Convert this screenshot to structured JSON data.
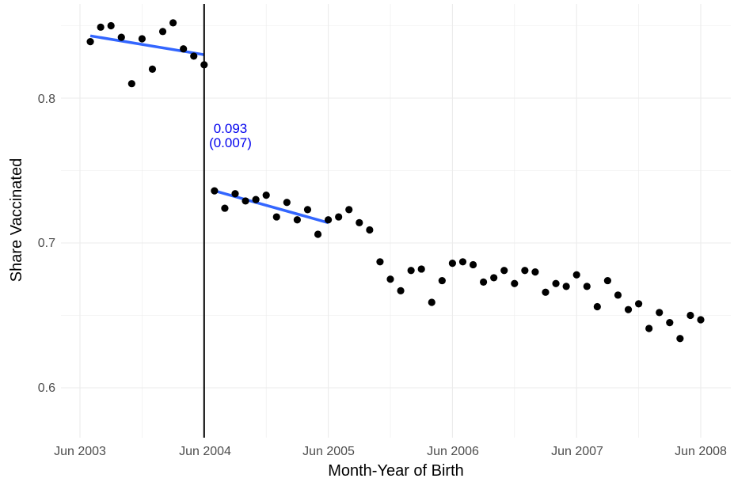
{
  "chart_data": {
    "type": "scatter",
    "title": "",
    "xlabel": "Month-Year of Birth",
    "ylabel": "Share Vaccinated",
    "x_ticks": [
      "Jun 2003",
      "Jun 2004",
      "Jun 2005",
      "Jun 2006",
      "Jun 2007",
      "Jun 2008"
    ],
    "y_ticks": [
      "0.6",
      "0.7",
      "0.8"
    ],
    "ylim": [
      0.565,
      0.868
    ],
    "xlim_months_from_jun_2003": [
      -0.7,
      60.5
    ],
    "grid": true,
    "cutoff": "Jun 2004",
    "annotation": {
      "estimate": "0.093",
      "se": "(0.007)"
    },
    "colors": {
      "points": "#000000",
      "fit": "#3366ff",
      "cutoff": "#000000",
      "annotation": "#0000ee",
      "grid": "#ebebeb"
    },
    "points": [
      {
        "x": "2003-07",
        "y": 0.839
      },
      {
        "x": "2003-08",
        "y": 0.849
      },
      {
        "x": "2003-09",
        "y": 0.85
      },
      {
        "x": "2003-10",
        "y": 0.842
      },
      {
        "x": "2003-11",
        "y": 0.81
      },
      {
        "x": "2003-12",
        "y": 0.841
      },
      {
        "x": "2004-01",
        "y": 0.82
      },
      {
        "x": "2004-02",
        "y": 0.846
      },
      {
        "x": "2004-03",
        "y": 0.852
      },
      {
        "x": "2004-04",
        "y": 0.834
      },
      {
        "x": "2004-05",
        "y": 0.829
      },
      {
        "x": "2004-06",
        "y": 0.823
      },
      {
        "x": "2004-07",
        "y": 0.736
      },
      {
        "x": "2004-08",
        "y": 0.724
      },
      {
        "x": "2004-09",
        "y": 0.734
      },
      {
        "x": "2004-10",
        "y": 0.729
      },
      {
        "x": "2004-11",
        "y": 0.73
      },
      {
        "x": "2004-12",
        "y": 0.733
      },
      {
        "x": "2005-01",
        "y": 0.718
      },
      {
        "x": "2005-02",
        "y": 0.728
      },
      {
        "x": "2005-03",
        "y": 0.716
      },
      {
        "x": "2005-04",
        "y": 0.723
      },
      {
        "x": "2005-05",
        "y": 0.706
      },
      {
        "x": "2005-06",
        "y": 0.716
      },
      {
        "x": "2005-07",
        "y": 0.718
      },
      {
        "x": "2005-08",
        "y": 0.723
      },
      {
        "x": "2005-09",
        "y": 0.714
      },
      {
        "x": "2005-10",
        "y": 0.709
      },
      {
        "x": "2005-11",
        "y": 0.687
      },
      {
        "x": "2005-12",
        "y": 0.675
      },
      {
        "x": "2006-01",
        "y": 0.667
      },
      {
        "x": "2006-02",
        "y": 0.681
      },
      {
        "x": "2006-03",
        "y": 0.682
      },
      {
        "x": "2006-04",
        "y": 0.659
      },
      {
        "x": "2006-05",
        "y": 0.674
      },
      {
        "x": "2006-06",
        "y": 0.686
      },
      {
        "x": "2006-07",
        "y": 0.687
      },
      {
        "x": "2006-08",
        "y": 0.685
      },
      {
        "x": "2006-09",
        "y": 0.673
      },
      {
        "x": "2006-10",
        "y": 0.676
      },
      {
        "x": "2006-11",
        "y": 0.681
      },
      {
        "x": "2006-12",
        "y": 0.672
      },
      {
        "x": "2007-01",
        "y": 0.681
      },
      {
        "x": "2007-02",
        "y": 0.68
      },
      {
        "x": "2007-03",
        "y": 0.666
      },
      {
        "x": "2007-04",
        "y": 0.672
      },
      {
        "x": "2007-05",
        "y": 0.67
      },
      {
        "x": "2007-06",
        "y": 0.678
      },
      {
        "x": "2007-07",
        "y": 0.67
      },
      {
        "x": "2007-08",
        "y": 0.656
      },
      {
        "x": "2007-09",
        "y": 0.674
      },
      {
        "x": "2007-10",
        "y": 0.664
      },
      {
        "x": "2007-11",
        "y": 0.654
      },
      {
        "x": "2007-12",
        "y": 0.658
      },
      {
        "x": "2008-01",
        "y": 0.641
      },
      {
        "x": "2008-02",
        "y": 0.652
      },
      {
        "x": "2008-03",
        "y": 0.645
      },
      {
        "x": "2008-04",
        "y": 0.634
      },
      {
        "x": "2008-05",
        "y": 0.65
      },
      {
        "x": "2008-06",
        "y": 0.647
      }
    ],
    "fit_lines": [
      {
        "x": [
          "2003-07",
          "2004-06"
        ],
        "y": [
          0.843,
          0.83
        ]
      },
      {
        "x": [
          "2004-07",
          "2005-06"
        ],
        "y": [
          0.736,
          0.714
        ]
      }
    ]
  }
}
